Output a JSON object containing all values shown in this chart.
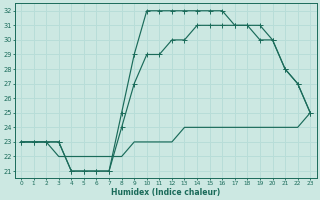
{
  "xlabel": "Humidex (Indice chaleur)",
  "bg_color": "#cce8e2",
  "grid_color": "#b8ddd8",
  "line_color": "#1a6b5a",
  "xlim": [
    -0.5,
    23.5
  ],
  "ylim": [
    20.5,
    32.5
  ],
  "xticks": [
    0,
    1,
    2,
    3,
    4,
    5,
    6,
    7,
    8,
    9,
    10,
    11,
    12,
    13,
    14,
    15,
    16,
    17,
    18,
    19,
    20,
    21,
    22,
    23
  ],
  "yticks": [
    21,
    22,
    23,
    24,
    25,
    26,
    27,
    28,
    29,
    30,
    31,
    32
  ],
  "line1_x": [
    0,
    1,
    2,
    3,
    4,
    5,
    6,
    7,
    8,
    9,
    10,
    11,
    12,
    13,
    14,
    15,
    16,
    17,
    18,
    19,
    20,
    21,
    22,
    23
  ],
  "line1_y": [
    23,
    23,
    23,
    23,
    21,
    21,
    21,
    21,
    25,
    29,
    32,
    32,
    32,
    32,
    32,
    32,
    32,
    31,
    31,
    31,
    30,
    28,
    27,
    25
  ],
  "line2_x": [
    0,
    1,
    2,
    3,
    4,
    5,
    6,
    7,
    8,
    9,
    10,
    11,
    12,
    13,
    14,
    15,
    16,
    17,
    18,
    19,
    20,
    21,
    22,
    23
  ],
  "line2_y": [
    23,
    23,
    23,
    23,
    21,
    21,
    21,
    21,
    24,
    27,
    29,
    29,
    30,
    30,
    31,
    31,
    31,
    31,
    31,
    30,
    30,
    28,
    27,
    25
  ],
  "line3_x": [
    0,
    1,
    2,
    3,
    4,
    5,
    6,
    7,
    8,
    9,
    10,
    11,
    12,
    13,
    14,
    15,
    16,
    17,
    18,
    19,
    20,
    21,
    22,
    23
  ],
  "line3_y": [
    23,
    23,
    23,
    22,
    22,
    22,
    22,
    22,
    22,
    23,
    23,
    23,
    23,
    24,
    24,
    24,
    24,
    24,
    24,
    24,
    24,
    24,
    24,
    25
  ]
}
